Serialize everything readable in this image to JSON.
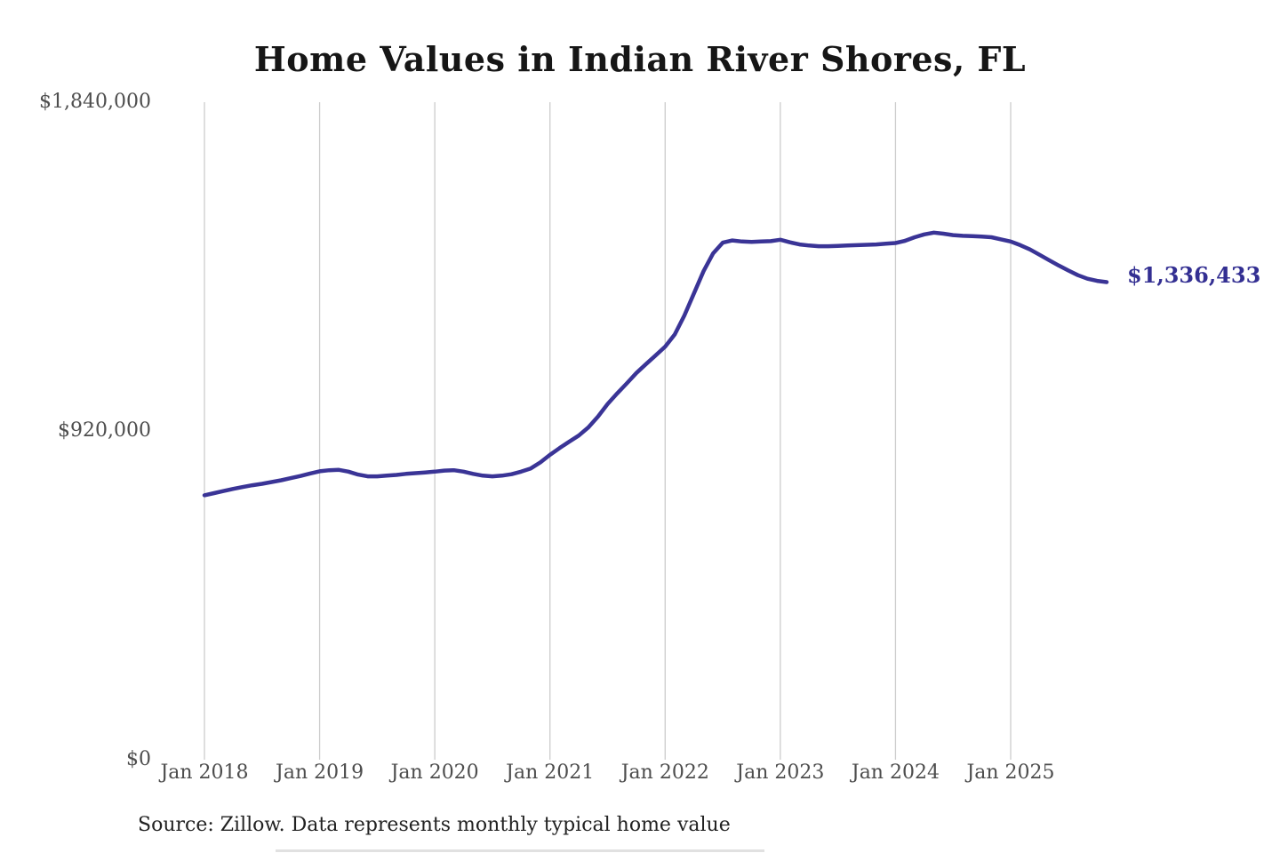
{
  "page": {
    "source_note": "Source: Zillow. Data represents monthly typical home value"
  },
  "chart_data": {
    "type": "line",
    "title": "Home Values in Indian River Shores, FL",
    "xlabel": "",
    "ylabel": "",
    "ylim": [
      0,
      1840000
    ],
    "grid": "vertical-gridlines-only",
    "legend": "none",
    "line_color": "#3a3496",
    "gridline_color": "#cccccc",
    "tick_label_color": "#4d4d4d",
    "y_ticks": [
      {
        "value": 1840000,
        "label": "$1,840,000"
      },
      {
        "value": 920000,
        "label": "$920,000"
      },
      {
        "value": 0,
        "label": "$0"
      }
    ],
    "x_ticks": [
      {
        "month_index": 0,
        "label": "Jan 2018"
      },
      {
        "month_index": 12,
        "label": "Jan 2019"
      },
      {
        "month_index": 24,
        "label": "Jan 2020"
      },
      {
        "month_index": 36,
        "label": "Jan 2021"
      },
      {
        "month_index": 48,
        "label": "Jan 2022"
      },
      {
        "month_index": 60,
        "label": "Jan 2023"
      },
      {
        "month_index": 72,
        "label": "Jan 2024"
      },
      {
        "month_index": 84,
        "label": "Jan 2025"
      }
    ],
    "series": [
      {
        "name": "Monthly typical home value",
        "start_month": "2018-01",
        "end_month": "2025-11",
        "values": [
          740000,
          746000,
          752000,
          758000,
          763000,
          768000,
          772000,
          777000,
          782000,
          788000,
          794000,
          801000,
          807000,
          810000,
          811000,
          806000,
          798000,
          793000,
          793000,
          795000,
          797000,
          800000,
          802000,
          804000,
          806000,
          809000,
          810000,
          806000,
          800000,
          795000,
          793000,
          795000,
          799000,
          806000,
          815000,
          832000,
          853000,
          872000,
          890000,
          907000,
          930000,
          960000,
          995000,
          1025000,
          1053000,
          1082000,
          1107000,
          1131000,
          1156000,
          1190000,
          1243000,
          1305000,
          1367000,
          1417000,
          1447000,
          1453000,
          1450000,
          1449000,
          1450000,
          1451000,
          1455000,
          1448000,
          1442000,
          1439000,
          1437000,
          1437000,
          1438000,
          1439000,
          1440000,
          1441000,
          1442000,
          1444000,
          1446000,
          1452000,
          1462000,
          1470000,
          1475000,
          1472000,
          1468000,
          1466000,
          1465000,
          1464000,
          1462000,
          1456000,
          1450000,
          1440000,
          1428000,
          1413000,
          1398000,
          1383000,
          1369000,
          1356000,
          1346000,
          1340000,
          1336433
        ]
      }
    ],
    "end_annotation": {
      "label": "$1,336,433",
      "value": 1336433,
      "color": "#332f92"
    }
  }
}
